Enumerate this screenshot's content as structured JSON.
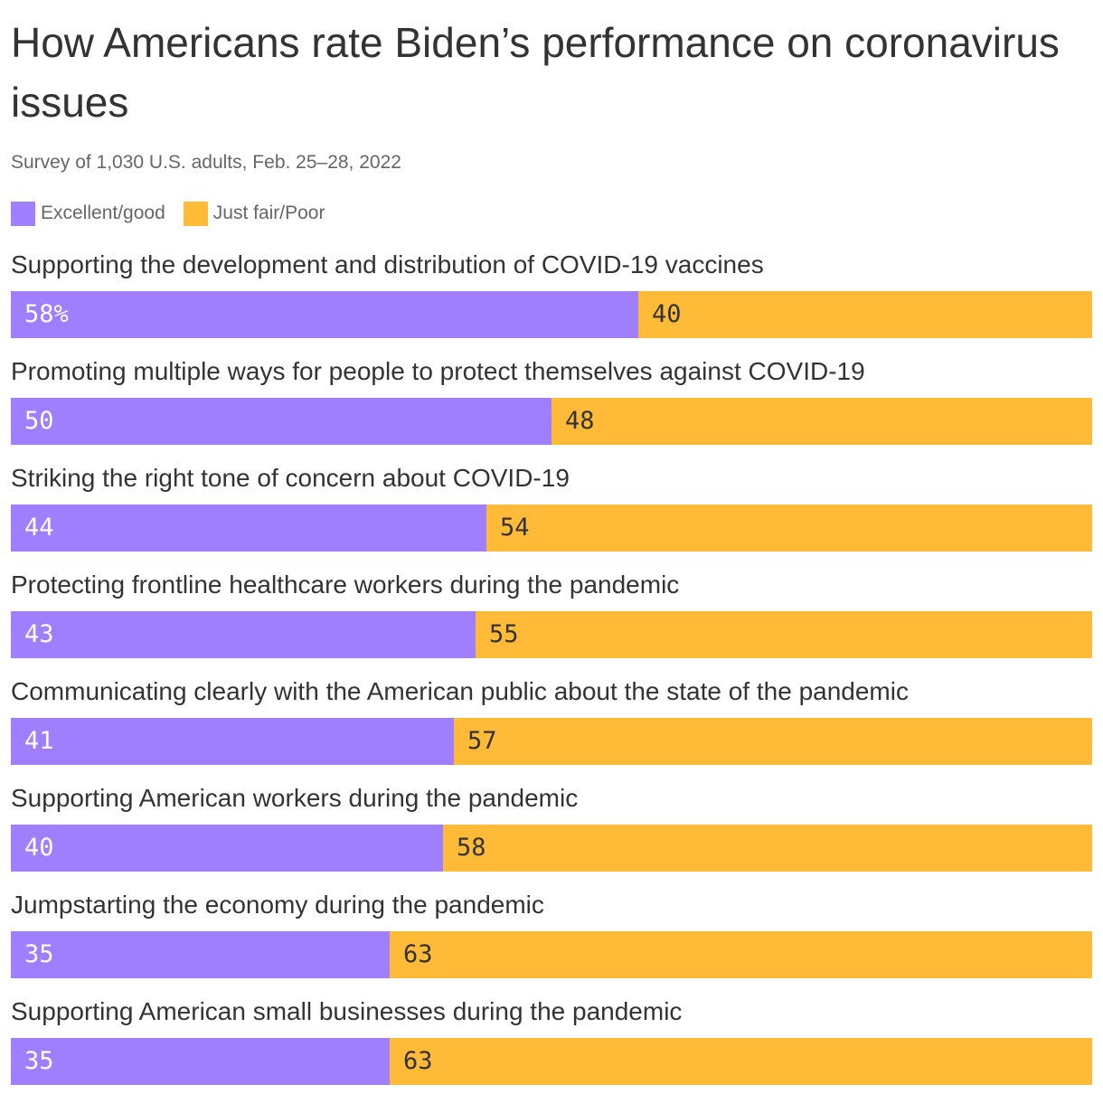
{
  "chart_data": {
    "type": "bar",
    "orientation": "horizontal",
    "stacked": true,
    "title": "How Americans rate Biden’s performance on coronavirus issues",
    "subtitle": "Survey of 1,030 U.S. adults, Feb. 25–28, 2022",
    "xlim": [
      0,
      100
    ],
    "grid": false,
    "legend_position": "top-left",
    "categories": [
      "Supporting the development and distribution of COVID-19 vaccines",
      "Promoting multiple ways for people to protect themselves against COVID-19",
      "Striking the right tone of concern about COVID-19",
      "Protecting frontline healthcare workers during the pandemic",
      "Communicating clearly with the American public about the state of the pandemic",
      "Supporting American workers during the pandemic",
      "Jumpstarting the economy during the pandemic",
      "Supporting American small businesses during the pandemic"
    ],
    "series": [
      {
        "name": "Excellent/good",
        "color": "#a07ffe",
        "values": [
          58,
          50,
          44,
          43,
          41,
          40,
          35,
          35
        ],
        "labels": [
          "58%",
          "50",
          "44",
          "43",
          "41",
          "40",
          "35",
          "35"
        ]
      },
      {
        "name": "Just fair/Poor",
        "color": "#ffba38",
        "values": [
          40,
          48,
          54,
          55,
          57,
          58,
          63,
          63
        ],
        "labels": [
          "40",
          "48",
          "54",
          "55",
          "57",
          "58",
          "63",
          "63"
        ]
      }
    ]
  }
}
